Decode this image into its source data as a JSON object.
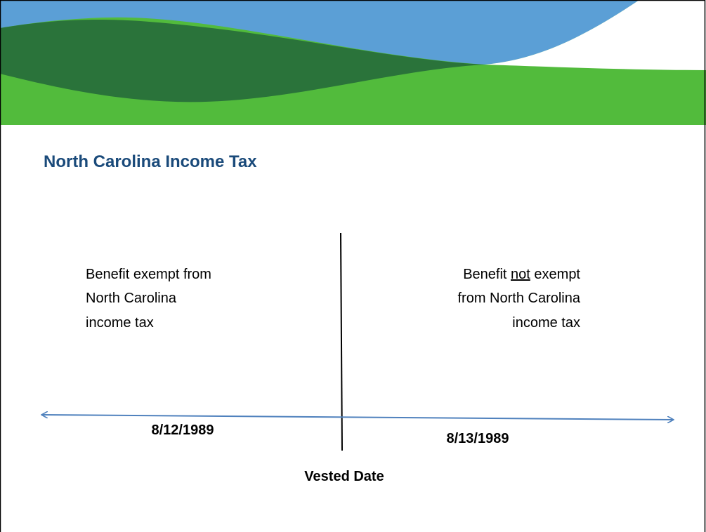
{
  "title": "North Carolina Income Tax",
  "left": {
    "lines": [
      "Benefit exempt from",
      "North Carolina",
      "income tax"
    ]
  },
  "right": {
    "first_line": [
      "Benefit",
      "not",
      "exempt"
    ],
    "lines": [
      "from North Carolina",
      "income tax"
    ]
  },
  "timeline": {
    "before": "8/12/1989",
    "after": "8/13/1989",
    "marker": "Vested Date"
  }
}
